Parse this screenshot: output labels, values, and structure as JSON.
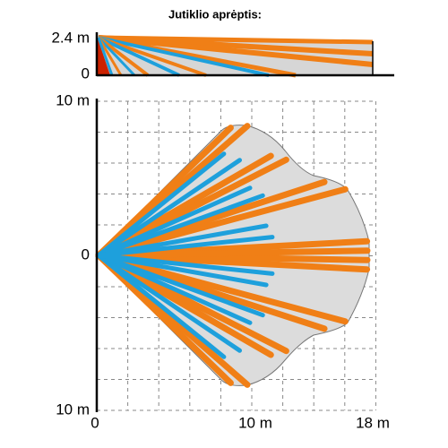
{
  "title": "Jutiklio aprėptis:",
  "side_view": {
    "y_top_label": "2.4 m",
    "y_bottom_label": "0"
  },
  "top_view": {
    "y_top_label": "10 m",
    "y_middle_label": "0",
    "y_bottom_label": "10 m",
    "x_labels": [
      "0",
      "10 m",
      "18 m"
    ]
  }
}
